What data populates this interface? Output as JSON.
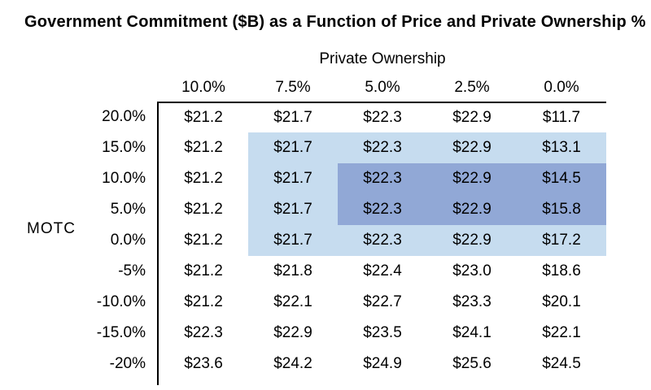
{
  "title": "Government Commitment ($B) as a Function of Price and Private Ownership %",
  "colors": {
    "highlight_light": "#c6dcef",
    "highlight_dark": "#91a8d6",
    "border": "#000000",
    "background": "#ffffff",
    "text": "#000000"
  },
  "table": {
    "col_group_label": "Private Ownership",
    "row_group_label": "MOTC",
    "col_headers": [
      "10.0%",
      "7.5%",
      "5.0%",
      "2.5%",
      "0.0%"
    ],
    "rows": [
      {
        "label": "20.0%",
        "values": [
          "$21.2",
          "$21.7",
          "$22.3",
          "$22.9",
          "$11.7"
        ],
        "highlights": [
          "none",
          "none",
          "none",
          "none",
          "none"
        ]
      },
      {
        "label": "15.0%",
        "values": [
          "$21.2",
          "$21.7",
          "$22.3",
          "$22.9",
          "$13.1"
        ],
        "highlights": [
          "none",
          "light",
          "light",
          "light",
          "light"
        ]
      },
      {
        "label": "10.0%",
        "values": [
          "$21.2",
          "$21.7",
          "$22.3",
          "$22.9",
          "$14.5"
        ],
        "highlights": [
          "none",
          "light",
          "dark",
          "dark",
          "dark"
        ]
      },
      {
        "label": "5.0%",
        "values": [
          "$21.2",
          "$21.7",
          "$22.3",
          "$22.9",
          "$15.8"
        ],
        "highlights": [
          "none",
          "light",
          "dark",
          "dark",
          "dark"
        ]
      },
      {
        "label": "0.0%",
        "values": [
          "$21.2",
          "$21.7",
          "$22.3",
          "$22.9",
          "$17.2"
        ],
        "highlights": [
          "none",
          "light",
          "light",
          "light",
          "light"
        ]
      },
      {
        "label": "-5%",
        "values": [
          "$21.2",
          "$21.8",
          "$22.4",
          "$23.0",
          "$18.6"
        ],
        "highlights": [
          "none",
          "none",
          "none",
          "none",
          "none"
        ]
      },
      {
        "label": "-10.0%",
        "values": [
          "$21.2",
          "$22.1",
          "$22.7",
          "$23.3",
          "$20.1"
        ],
        "highlights": [
          "none",
          "none",
          "none",
          "none",
          "none"
        ]
      },
      {
        "label": "-15.0%",
        "values": [
          "$22.3",
          "$22.9",
          "$23.5",
          "$24.1",
          "$22.1"
        ],
        "highlights": [
          "none",
          "none",
          "none",
          "none",
          "none"
        ]
      },
      {
        "label": "-20%",
        "values": [
          "$23.6",
          "$24.2",
          "$24.9",
          "$25.6",
          "$24.5"
        ],
        "highlights": [
          "none",
          "none",
          "none",
          "none",
          "none"
        ]
      }
    ]
  },
  "chart_data": {
    "type": "table",
    "title": "Government Commitment ($B) as a Function of Price and Private Ownership %",
    "column_axis_label": "Private Ownership",
    "row_axis_label": "MOTC",
    "columns": [
      "10.0%",
      "7.5%",
      "5.0%",
      "2.5%",
      "0.0%"
    ],
    "rows": [
      "20.0%",
      "15.0%",
      "10.0%",
      "5.0%",
      "0.0%",
      "-5%",
      "-10.0%",
      "-15.0%",
      "-20%"
    ],
    "values_billions_usd": [
      [
        21.2,
        21.7,
        22.3,
        22.9,
        11.7
      ],
      [
        21.2,
        21.7,
        22.3,
        22.9,
        13.1
      ],
      [
        21.2,
        21.7,
        22.3,
        22.9,
        14.5
      ],
      [
        21.2,
        21.7,
        22.3,
        22.9,
        15.8
      ],
      [
        21.2,
        21.7,
        22.3,
        22.9,
        17.2
      ],
      [
        21.2,
        21.8,
        22.4,
        23.0,
        18.6
      ],
      [
        21.2,
        22.1,
        22.7,
        23.3,
        20.1
      ],
      [
        22.3,
        22.9,
        23.5,
        24.1,
        22.1
      ],
      [
        23.6,
        24.2,
        24.9,
        25.6,
        24.5
      ]
    ],
    "highlight_regions": [
      {
        "shade": "light",
        "rows": [
          "15.0%",
          "10.0%",
          "5.0%",
          "0.0%"
        ],
        "columns": [
          "7.5%",
          "5.0%",
          "2.5%",
          "0.0%"
        ]
      },
      {
        "shade": "dark",
        "rows": [
          "10.0%",
          "5.0%"
        ],
        "columns": [
          "5.0%",
          "2.5%",
          "0.0%"
        ]
      }
    ],
    "grid": "off",
    "legend": "none"
  }
}
